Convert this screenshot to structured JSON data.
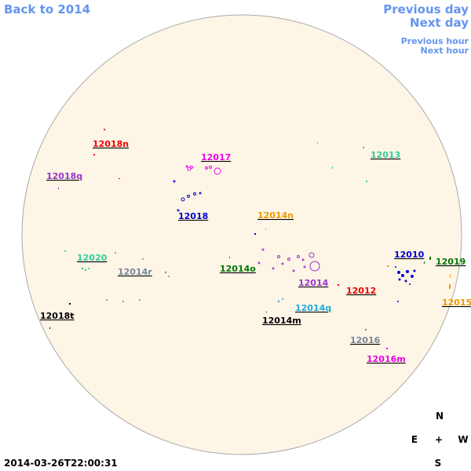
{
  "navigation": {
    "back": "Back to 2014",
    "previous_day": "Previous day",
    "next_day": "Next day",
    "previous_hour": "Previous hour",
    "next_hour": "Next hour"
  },
  "regions": [
    "12018n",
    "12017",
    "12013",
    "12018q",
    "12018",
    "12014n",
    "12020",
    "12014r",
    "12014o",
    "12010",
    "12019",
    "12014",
    "12012",
    "12015",
    "12014q",
    "12018t",
    "12014m",
    "12016",
    "12016m"
  ],
  "compass": {
    "north": "N",
    "east": "E",
    "center": "+",
    "west": "W",
    "south": "S"
  },
  "timestamp": "2014-03-26T22:00:31"
}
